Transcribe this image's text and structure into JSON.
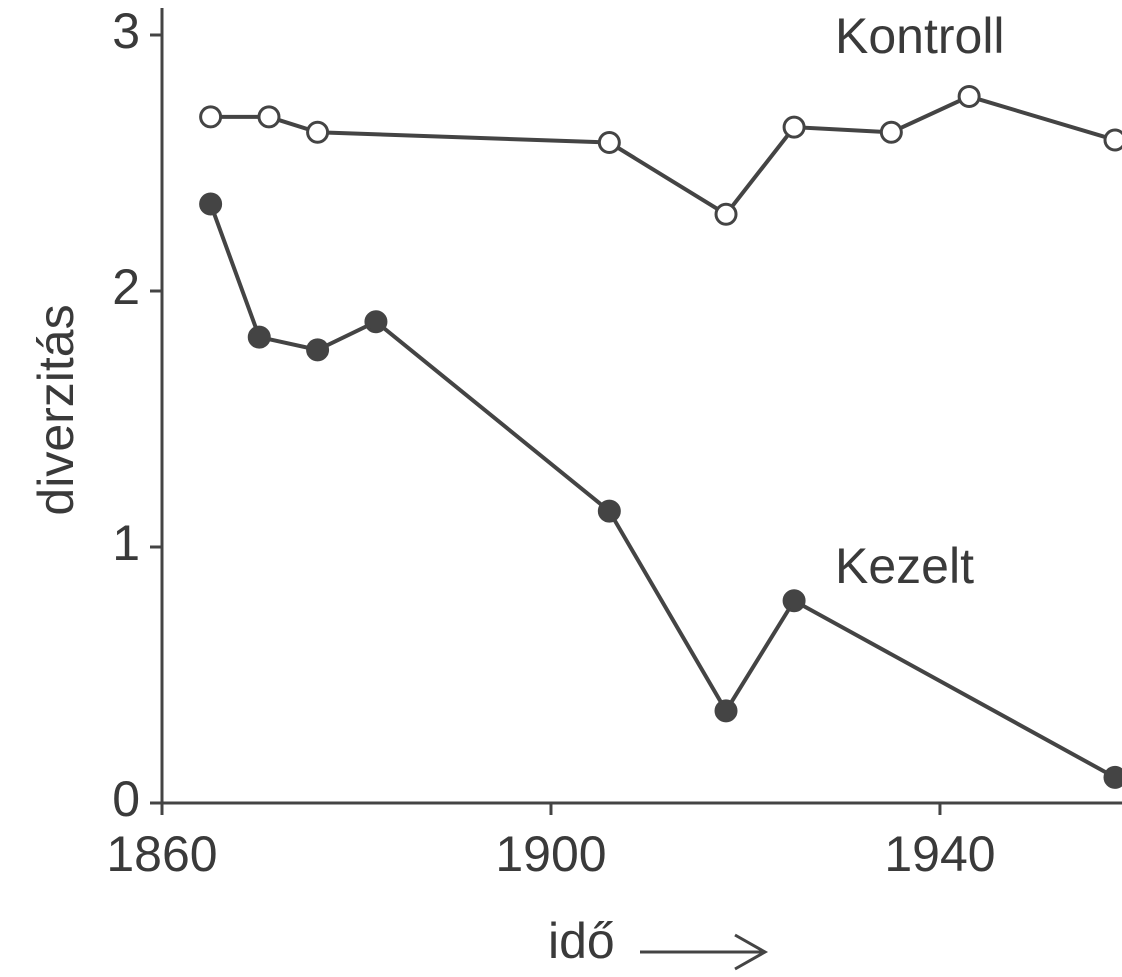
{
  "chart_data": {
    "type": "line",
    "xlabel": "idő",
    "ylabel": "diverzitás",
    "xlim": [
      1860,
      1958
    ],
    "xticks": [
      1860,
      1900,
      1940
    ],
    "ylim": [
      0,
      3
    ],
    "yticks": [
      0,
      1,
      2,
      3
    ],
    "series": [
      {
        "name": "Kontroll",
        "color": "#444444",
        "marker": "open",
        "x": [
          1865,
          1871,
          1876,
          1906,
          1918,
          1925,
          1935,
          1943,
          1958
        ],
        "values": [
          2.68,
          2.68,
          2.62,
          2.58,
          2.3,
          2.64,
          2.62,
          2.76,
          2.59
        ]
      },
      {
        "name": "Kezelt",
        "color": "#444444",
        "marker": "filled",
        "x": [
          1865,
          1870,
          1876,
          1882,
          1906,
          1918,
          1925,
          1958
        ],
        "values": [
          2.34,
          1.82,
          1.77,
          1.88,
          1.14,
          0.36,
          0.79,
          0.1
        ]
      }
    ]
  }
}
